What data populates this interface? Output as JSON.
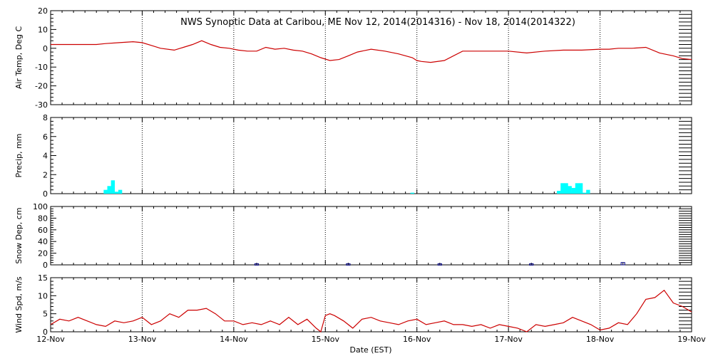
{
  "chart_data": {
    "title": "NWS Synoptic Data at Caribou, ME    Nov 12, 2014(2014316) - Nov 18, 2014(2014322)",
    "xlabel": "Date (EST)",
    "x_tick_labels": [
      "12-Nov",
      "13-Nov",
      "14-Nov",
      "15-Nov",
      "16-Nov",
      "17-Nov",
      "18-Nov",
      "19-Nov"
    ],
    "x_range_days": [
      "2014-11-12",
      "2014-11-19"
    ],
    "grid": "vertical dotted at day boundaries",
    "panels": [
      {
        "type": "line",
        "ylabel": "Air Temp, Deg C",
        "ylim": [
          -30,
          20
        ],
        "yticks": [
          20,
          10,
          0,
          -10,
          -20,
          -30
        ],
        "color": "#cc0000",
        "x_days": [
          0,
          0.25,
          0.5,
          0.6,
          0.75,
          0.9,
          1.0,
          1.1,
          1.2,
          1.35,
          1.45,
          1.55,
          1.65,
          1.75,
          1.85,
          1.95,
          2.05,
          2.15,
          2.25,
          2.35,
          2.45,
          2.55,
          2.65,
          2.75,
          2.85,
          2.95,
          3.05,
          3.15,
          3.25,
          3.35,
          3.5,
          3.65,
          3.8,
          3.95,
          4.0,
          4.05,
          4.15,
          4.3,
          4.5,
          4.7,
          4.9,
          5.0,
          5.2,
          5.4,
          5.6,
          5.8,
          6.0,
          6.1,
          6.2,
          6.35,
          6.5,
          6.65,
          6.8,
          6.9,
          7.0
        ],
        "values": [
          2,
          2,
          2,
          2.5,
          3,
          3.5,
          3,
          1.5,
          0,
          -1,
          0.5,
          2,
          4,
          2,
          0.5,
          0,
          -1,
          -1.5,
          -1.5,
          0.5,
          -0.5,
          0,
          -1,
          -1.5,
          -3,
          -5,
          -6.5,
          -6,
          -4,
          -2,
          -0.5,
          -1.5,
          -3,
          -5,
          -6.5,
          -7,
          -7.5,
          -6.5,
          -1.5,
          -1.5,
          -1.5,
          -1.5,
          -2.5,
          -1.5,
          -1,
          -1,
          -0.5,
          -0.5,
          0,
          0,
          0.5,
          -2.5,
          -4,
          -5.5,
          -6
        ]
      },
      {
        "type": "bar",
        "ylabel": "Precip, mm",
        "ylim": [
          0,
          8
        ],
        "yticks": [
          8,
          6,
          4,
          2,
          0
        ],
        "color": "#00ffff",
        "bar_width_days": 0.042,
        "x_days": [
          0.6,
          0.64,
          0.68,
          0.72,
          0.76,
          3.95,
          5.55,
          5.59,
          5.63,
          5.67,
          5.71,
          5.75,
          5.79,
          5.83,
          5.87
        ],
        "values": [
          0.4,
          0.8,
          1.4,
          0.2,
          0.4,
          0.1,
          0.3,
          1.1,
          1.1,
          0.8,
          0.6,
          1.1,
          1.1,
          0.1,
          0.4
        ]
      },
      {
        "type": "bar",
        "ylabel": "Snow Dep, cm",
        "ylim": [
          0,
          100
        ],
        "yticks": [
          100,
          80,
          60,
          40,
          20,
          0
        ],
        "color": "#000080",
        "bar_width_days": 0.04,
        "x_days": [
          2.25,
          3.25,
          4.25,
          5.25,
          6.25
        ],
        "values": [
          2,
          2,
          2,
          2,
          4
        ]
      },
      {
        "type": "line",
        "ylabel": "Wind Spd, m/s",
        "ylim": [
          0,
          15
        ],
        "yticks": [
          15,
          10,
          5,
          0
        ],
        "color": "#cc0000",
        "x_days": [
          0,
          0.1,
          0.2,
          0.3,
          0.4,
          0.5,
          0.6,
          0.7,
          0.8,
          0.9,
          1.0,
          1.1,
          1.2,
          1.3,
          1.4,
          1.5,
          1.6,
          1.7,
          1.8,
          1.9,
          2.0,
          2.1,
          2.2,
          2.3,
          2.4,
          2.5,
          2.6,
          2.7,
          2.8,
          2.9,
          2.95,
          3.0,
          3.05,
          3.1,
          3.2,
          3.3,
          3.4,
          3.5,
          3.6,
          3.7,
          3.8,
          3.9,
          4.0,
          4.1,
          4.2,
          4.3,
          4.4,
          4.5,
          4.6,
          4.7,
          4.8,
          4.9,
          5.0,
          5.1,
          5.2,
          5.3,
          5.4,
          5.5,
          5.6,
          5.7,
          5.8,
          5.9,
          6.0,
          6.1,
          6.2,
          6.3,
          6.4,
          6.5,
          6.6,
          6.7,
          6.8,
          6.9,
          7.0
        ],
        "values": [
          2,
          3.5,
          3,
          4,
          3,
          2,
          1.5,
          3,
          2.5,
          3,
          4,
          2,
          3,
          5,
          4,
          6,
          6,
          6.5,
          5,
          3,
          3,
          2,
          2.5,
          2,
          3,
          2,
          4,
          2,
          3.5,
          1,
          0,
          4.5,
          5,
          4.5,
          3,
          1,
          3.5,
          4,
          3,
          2.5,
          2,
          3,
          3.5,
          2,
          2.5,
          3,
          2,
          2,
          1.5,
          2,
          1,
          2,
          1.5,
          1,
          0,
          2,
          1.5,
          2,
          2.5,
          4,
          3,
          2,
          0.5,
          1,
          2.5,
          2,
          5,
          9,
          9.5,
          11.5,
          8,
          7,
          5.5
        ]
      }
    ]
  }
}
